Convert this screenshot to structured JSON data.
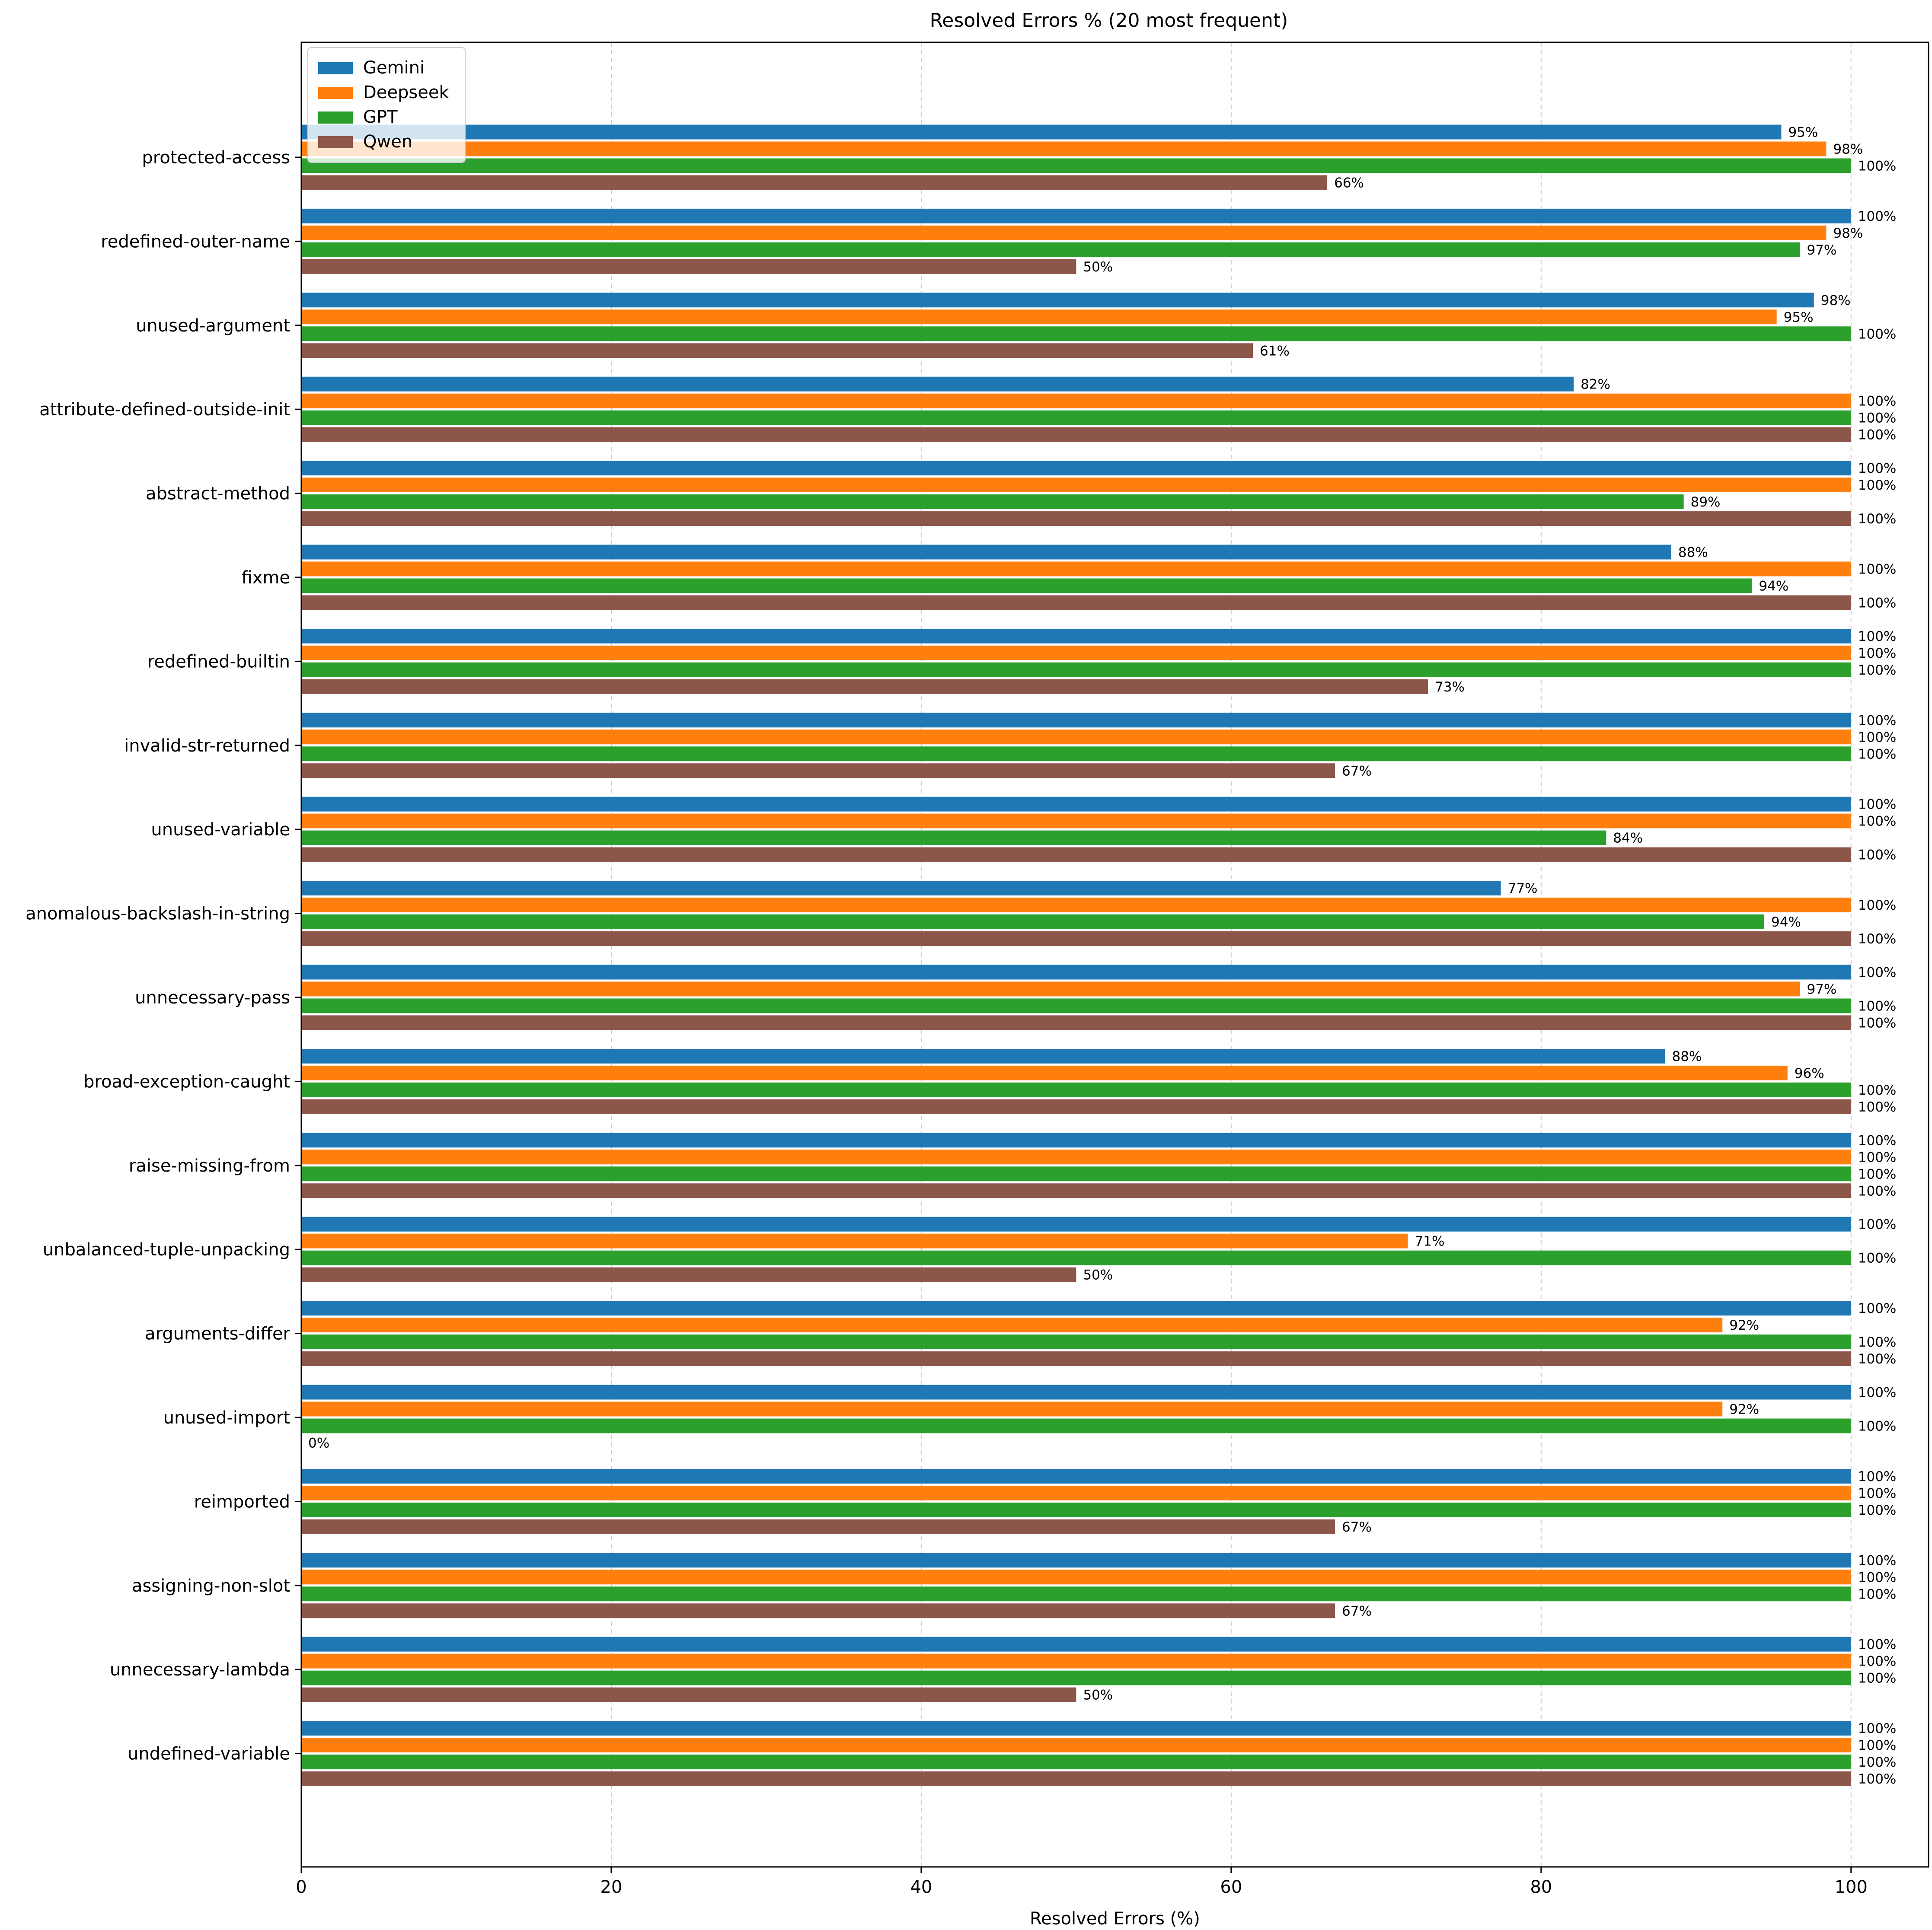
{
  "chart_data": {
    "type": "bar",
    "orientation": "horizontal",
    "title": "Resolved Errors % (20 most frequent)",
    "xlabel": "Resolved Errors (%)",
    "ylabel": "",
    "xlim": [
      0,
      105
    ],
    "xticks": [
      0,
      20,
      40,
      60,
      80,
      100
    ],
    "grid": "x-dashed",
    "legend_position": "top-left",
    "categories": [
      "protected-access",
      "redefined-outer-name",
      "unused-argument",
      "attribute-defined-outside-init",
      "abstract-method",
      "fixme",
      "redefined-builtin",
      "invalid-str-returned",
      "unused-variable",
      "anomalous-backslash-in-string",
      "unnecessary-pass",
      "broad-exception-caught",
      "raise-missing-from",
      "unbalanced-tuple-unpacking",
      "arguments-differ",
      "unused-import",
      "reimported",
      "assigning-non-slot",
      "unnecessary-lambda",
      "undefined-variable"
    ],
    "series": [
      {
        "name": "Gemini",
        "color": "#1f77b4",
        "values": [
          95.5,
          100,
          97.6,
          82.1,
          100,
          88.4,
          100,
          100,
          100,
          77.4,
          100,
          88.0,
          100,
          100,
          100,
          100,
          100,
          100,
          100,
          100
        ],
        "labels": [
          "95%",
          "100%",
          "98%",
          "82%",
          "100%",
          "88%",
          "100%",
          "100%",
          "100%",
          "77%",
          "100%",
          "88%",
          "100%",
          "100%",
          "100%",
          "100%",
          "100%",
          "100%",
          "100%",
          "100%"
        ]
      },
      {
        "name": "Deepseek",
        "color": "#ff7f0e",
        "values": [
          98.4,
          98.4,
          95.2,
          100,
          100,
          100,
          100,
          100,
          100,
          100,
          96.7,
          95.9,
          100,
          71.4,
          91.7,
          91.7,
          100,
          100,
          100,
          100
        ],
        "labels": [
          "98%",
          "98%",
          "95%",
          "100%",
          "100%",
          "100%",
          "100%",
          "100%",
          "100%",
          "100%",
          "97%",
          "96%",
          "100%",
          "71%",
          "92%",
          "92%",
          "100%",
          "100%",
          "100%",
          "100%"
        ]
      },
      {
        "name": "GPT",
        "color": "#2ca02c",
        "values": [
          100,
          96.7,
          100,
          100,
          89.2,
          93.6,
          100,
          100,
          84.2,
          94.4,
          100,
          100,
          100,
          100,
          100,
          100,
          100,
          100,
          100,
          100
        ],
        "labels": [
          "100%",
          "97%",
          "100%",
          "100%",
          "89%",
          "94%",
          "100%",
          "100%",
          "84%",
          "94%",
          "100%",
          "100%",
          "100%",
          "100%",
          "100%",
          "100%",
          "100%",
          "100%",
          "100%",
          "100%"
        ]
      },
      {
        "name": "Qwen",
        "color": "#8c564b",
        "values": [
          66.2,
          50,
          61.4,
          100,
          100,
          100,
          72.7,
          66.7,
          100,
          100,
          100,
          100,
          100,
          50,
          100,
          0,
          66.7,
          66.7,
          50,
          100
        ],
        "labels": [
          "66%",
          "50%",
          "61%",
          "100%",
          "100%",
          "100%",
          "73%",
          "67%",
          "100%",
          "100%",
          "100%",
          "100%",
          "100%",
          "50%",
          "100%",
          "0%",
          "67%",
          "67%",
          "50%",
          "100%"
        ]
      }
    ]
  }
}
